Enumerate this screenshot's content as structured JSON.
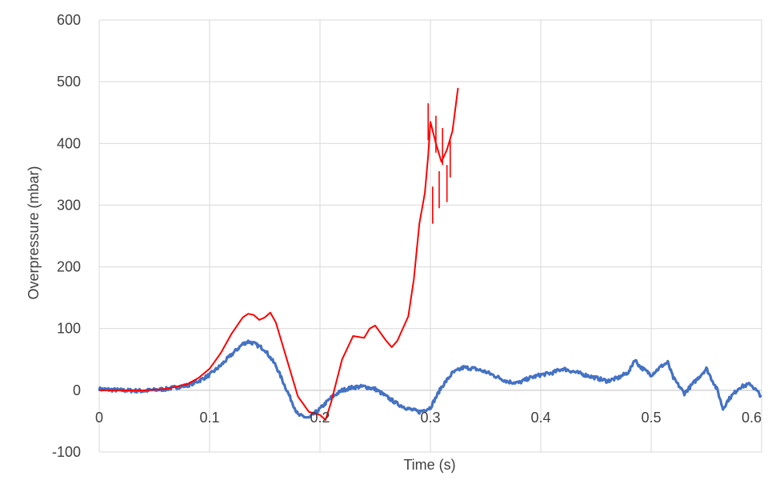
{
  "chart_data": {
    "type": "line",
    "title": "",
    "xlabel": "Time (s)",
    "ylabel": "Overpressure (mbar)",
    "xlim": [
      0,
      0.6
    ],
    "ylim": [
      -100,
      600
    ],
    "x_ticks": [
      0,
      0.1,
      0.2,
      0.3,
      0.4,
      0.5,
      0.6
    ],
    "x_tick_labels": [
      "0",
      "0.1",
      "0.2",
      "0.3",
      "0.4",
      "0.5",
      "0.6"
    ],
    "y_ticks": [
      -100,
      0,
      100,
      200,
      300,
      400,
      500,
      600
    ],
    "y_tick_labels": [
      "-100",
      "0",
      "100",
      "200",
      "300",
      "400",
      "500",
      "600"
    ],
    "grid": true,
    "legend": "none",
    "series": [
      {
        "color": "#4472c4",
        "noise": 3,
        "x": [
          0,
          0.02,
          0.04,
          0.06,
          0.08,
          0.09,
          0.1,
          0.11,
          0.12,
          0.13,
          0.135,
          0.14,
          0.15,
          0.16,
          0.17,
          0.18,
          0.19,
          0.2,
          0.21,
          0.22,
          0.23,
          0.24,
          0.25,
          0.26,
          0.27,
          0.28,
          0.29,
          0.3,
          0.31,
          0.32,
          0.33,
          0.34,
          0.35,
          0.36,
          0.37,
          0.38,
          0.39,
          0.4,
          0.41,
          0.42,
          0.43,
          0.44,
          0.45,
          0.46,
          0.47,
          0.48,
          0.485,
          0.49,
          0.5,
          0.51,
          0.515,
          0.52,
          0.53,
          0.54,
          0.55,
          0.56,
          0.565,
          0.57,
          0.58,
          0.59,
          0.6
        ],
        "y": [
          2,
          0,
          -1,
          2,
          8,
          15,
          25,
          40,
          58,
          75,
          79,
          76,
          66,
          40,
          0,
          -40,
          -45,
          -30,
          -12,
          0,
          5,
          6,
          2,
          -10,
          -22,
          -30,
          -35,
          -28,
          5,
          28,
          37,
          35,
          30,
          22,
          14,
          12,
          20,
          25,
          28,
          35,
          30,
          25,
          20,
          15,
          20,
          30,
          50,
          38,
          25,
          40,
          45,
          20,
          -5,
          15,
          35,
          0,
          -30,
          -15,
          5,
          10,
          -10
        ]
      },
      {
        "color": "#ff0000",
        "noise": 0,
        "x": [
          0,
          0.02,
          0.04,
          0.06,
          0.08,
          0.09,
          0.1,
          0.11,
          0.12,
          0.13,
          0.135,
          0.14,
          0.145,
          0.15,
          0.155,
          0.16,
          0.17,
          0.18,
          0.19,
          0.2,
          0.205,
          0.21,
          0.22,
          0.23,
          0.24,
          0.245,
          0.25,
          0.26,
          0.265,
          0.27,
          0.28,
          0.285,
          0.29,
          0.295,
          0.298,
          0.3,
          0.305,
          0.31,
          0.315,
          0.32,
          0.325
        ],
        "y": [
          0,
          0,
          0,
          2,
          10,
          20,
          35,
          60,
          92,
          118,
          124,
          122,
          114,
          118,
          126,
          110,
          50,
          -10,
          -35,
          -40,
          -48,
          -20,
          50,
          88,
          85,
          100,
          105,
          80,
          70,
          80,
          120,
          180,
          270,
          320,
          380,
          435,
          400,
          370,
          390,
          420,
          490
        ],
        "spikes": [
          [
            0.298,
            465
          ],
          [
            0.302,
            330
          ],
          [
            0.305,
            445
          ],
          [
            0.308,
            355
          ],
          [
            0.311,
            425
          ],
          [
            0.315,
            365
          ],
          [
            0.318,
            405
          ]
        ]
      }
    ]
  }
}
